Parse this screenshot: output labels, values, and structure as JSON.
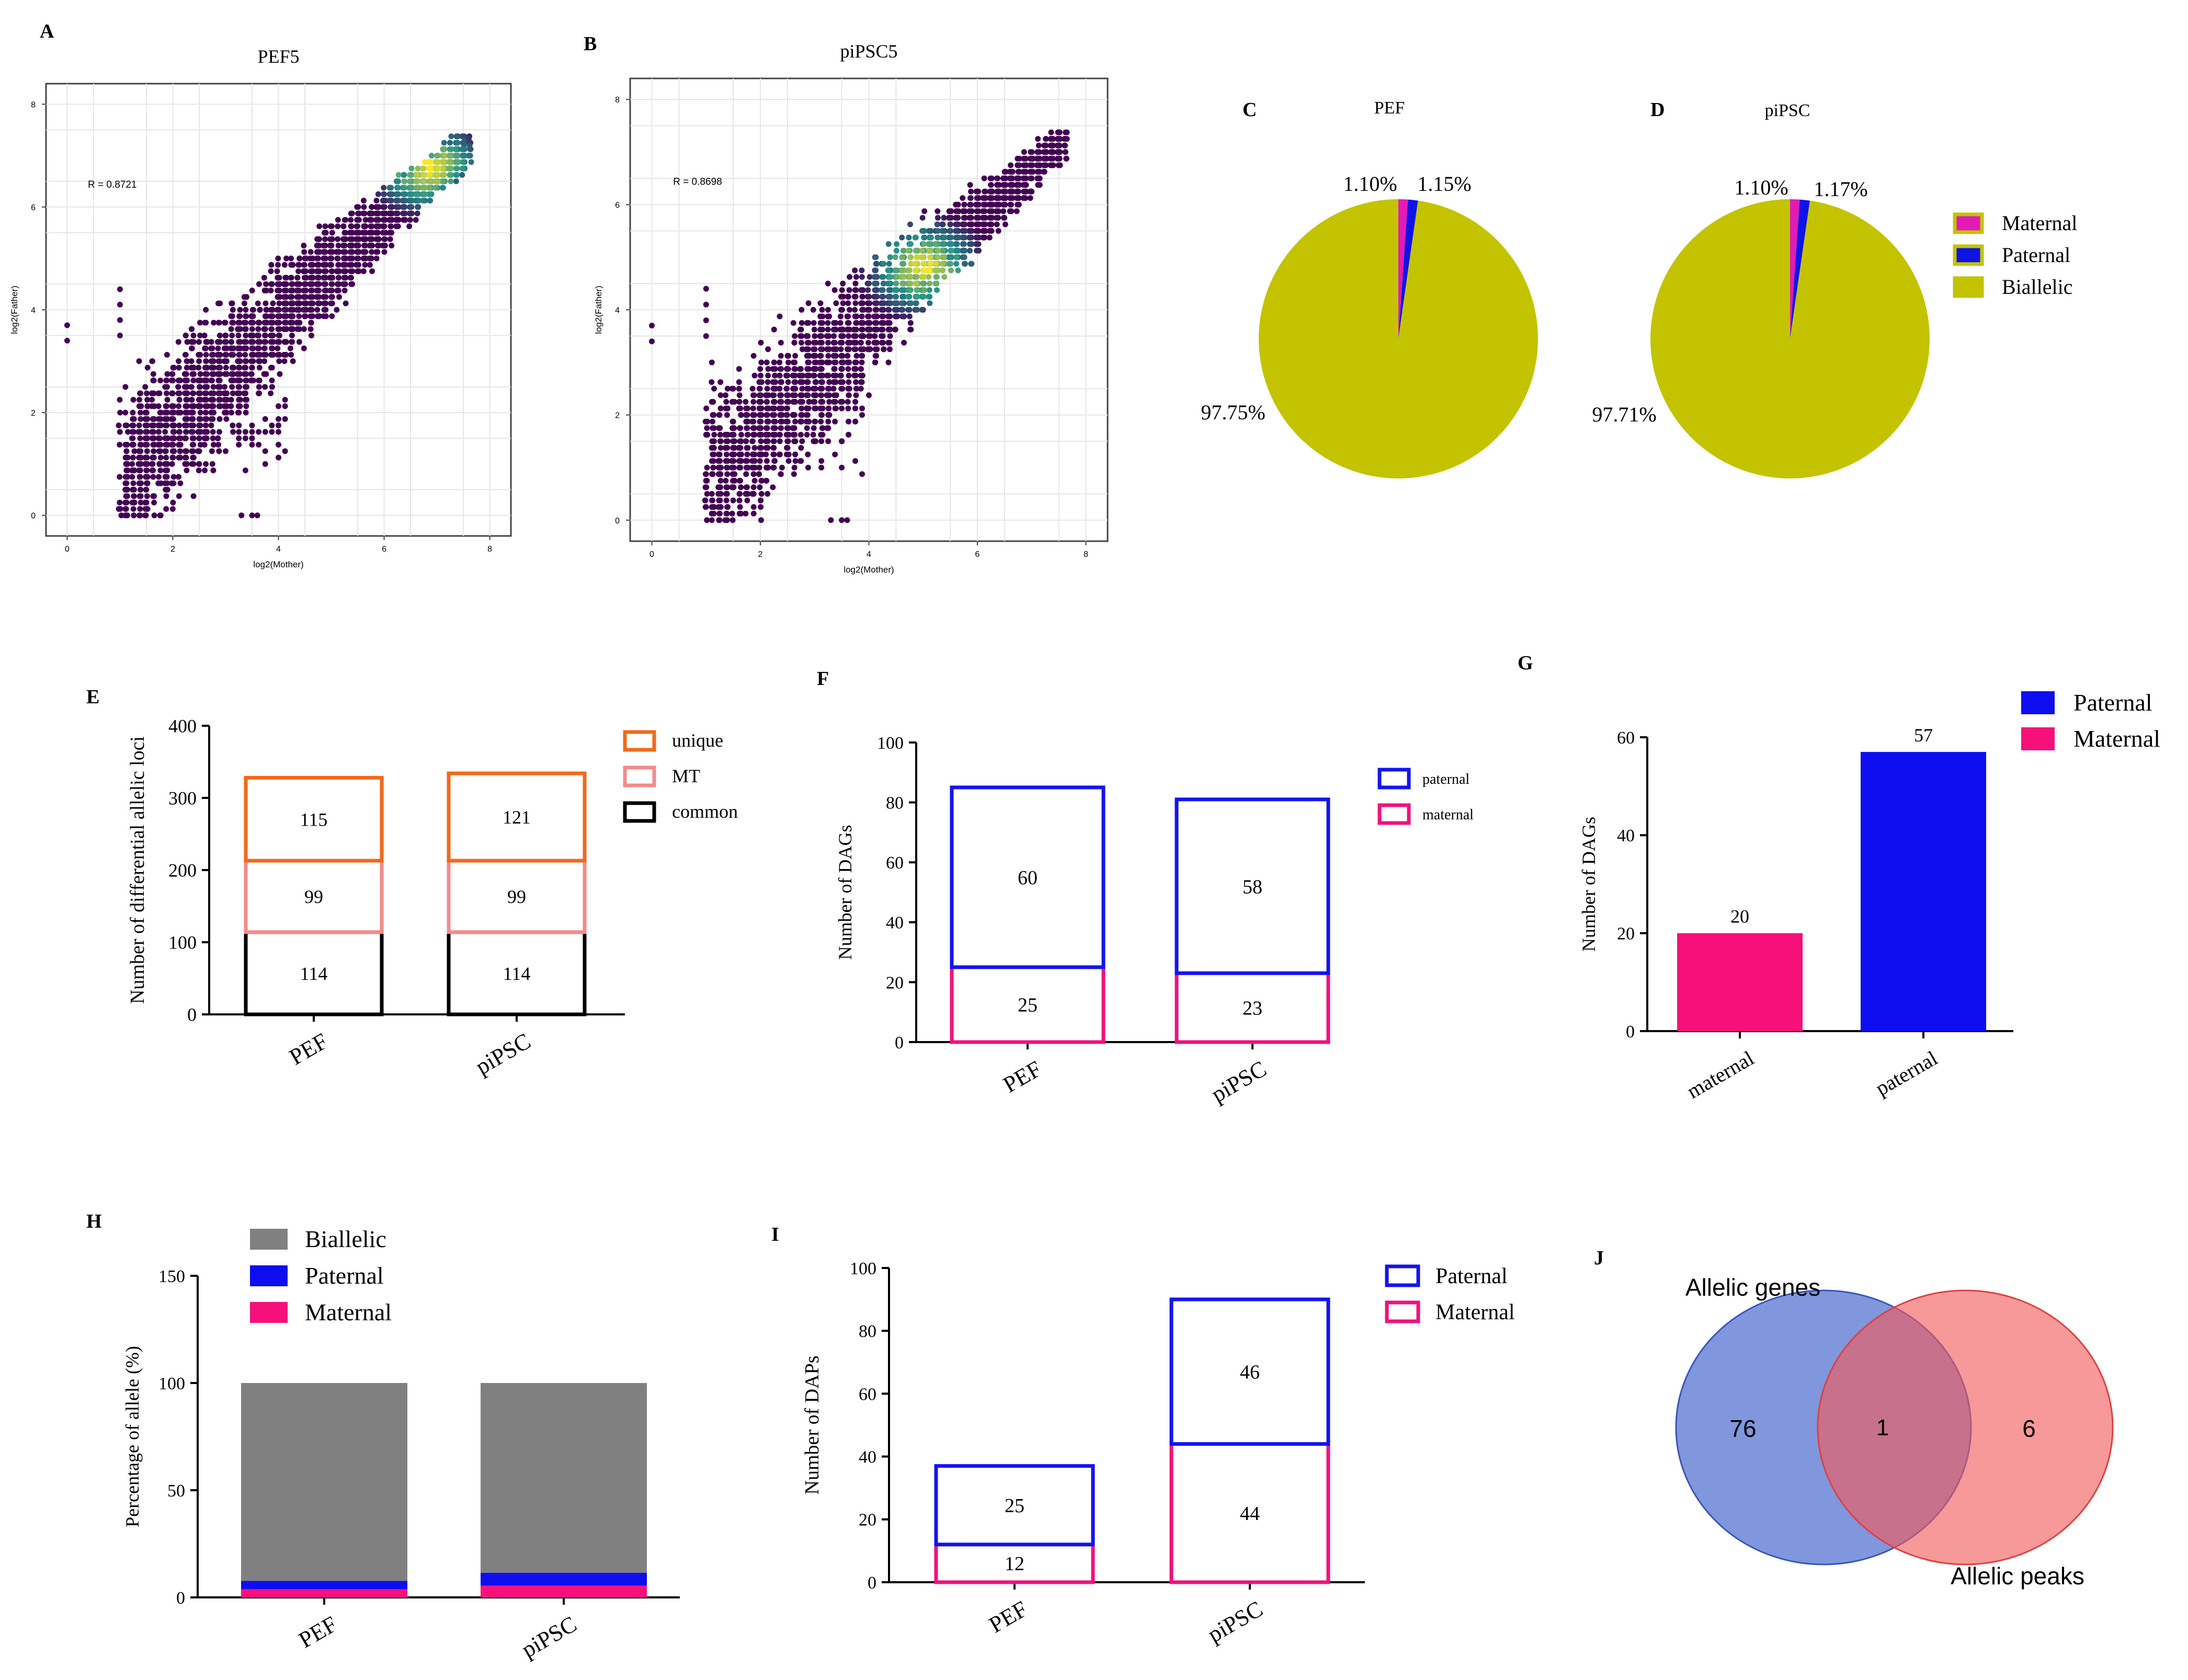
{
  "figure": {
    "panel_letters": [
      "A",
      "B",
      "C",
      "D",
      "E",
      "F",
      "G",
      "H",
      "I",
      "J"
    ]
  },
  "chart_data": [
    {
      "id": "A",
      "type": "scatter",
      "title": "PEF5",
      "xlabel": "log2(Mother)",
      "ylabel": "log2(Father)",
      "annotation": "R = 0.8721",
      "xlim": [
        -0.4,
        8.4
      ],
      "ylim": [
        -0.4,
        8.4
      ],
      "xticks": [
        0,
        2,
        4,
        6,
        8
      ],
      "yticks": [
        0,
        2,
        4,
        6,
        8
      ],
      "grid": true,
      "density_peak": [
        6.8,
        6.8
      ],
      "colors": {
        "low": "#440154",
        "mid": "#21918c",
        "high": "#fde725"
      }
    },
    {
      "id": "B",
      "type": "scatter",
      "title": "piPSC5",
      "xlabel": "log2(Mother)",
      "ylabel": "log2(Father)",
      "annotation": "R = 0.8698",
      "xlim": [
        -0.4,
        8.4
      ],
      "ylim": [
        -0.4,
        8.4
      ],
      "xticks": [
        0,
        2,
        4,
        6,
        8
      ],
      "yticks": [
        0,
        2,
        4,
        6,
        8
      ],
      "grid": true,
      "density_peak": [
        5.0,
        4.8
      ],
      "colors": {
        "low": "#440154",
        "mid": "#21918c",
        "high": "#fde725"
      }
    },
    {
      "id": "C",
      "type": "pie",
      "title": "PEF",
      "slices": [
        {
          "name": "Maternal",
          "value": 1.1,
          "label": "1.10%",
          "color": "#e31ab8"
        },
        {
          "name": "Paternal",
          "value": 1.15,
          "label": "1.15%",
          "color": "#0f14e6"
        },
        {
          "name": "Biallelic",
          "value": 97.75,
          "label": "97.75%",
          "color": "#c3c300"
        }
      ]
    },
    {
      "id": "D",
      "type": "pie",
      "title": "piPSC",
      "slices": [
        {
          "name": "Maternal",
          "value": 1.1,
          "label": "1.10%",
          "color": "#e31ab8"
        },
        {
          "name": "Paternal",
          "value": 1.17,
          "label": "1.17%",
          "color": "#0f14e6"
        },
        {
          "name": "Biallelic",
          "value": 97.71,
          "label": "97.71%",
          "color": "#c3c300"
        }
      ],
      "legend": [
        {
          "name": "Maternal",
          "color": "#e31ab8",
          "border": "#c3c300"
        },
        {
          "name": "Paternal",
          "color": "#0f14e6",
          "border": "#c3c300"
        },
        {
          "name": "Biallelic",
          "color": "#c3c300",
          "border": "#c3c300"
        }
      ]
    },
    {
      "id": "E",
      "type": "bar",
      "stacked": true,
      "outlined": true,
      "categories": [
        "PEF",
        "piPSC"
      ],
      "ylabel": "Number of differential allelic loci",
      "ylim": [
        0,
        400
      ],
      "yticks": [
        0,
        100,
        200,
        300,
        400
      ],
      "series": [
        {
          "name": "common",
          "values": [
            114,
            114
          ],
          "color": "#000000"
        },
        {
          "name": "MT",
          "values": [
            99,
            99
          ],
          "color": "#f58b8b"
        },
        {
          "name": "unique",
          "values": [
            115,
            121
          ],
          "color": "#f26a1b"
        }
      ],
      "legend": [
        "unique",
        "MT",
        "common"
      ]
    },
    {
      "id": "F",
      "type": "bar",
      "stacked": true,
      "outlined": true,
      "categories": [
        "PEF",
        "piPSC"
      ],
      "ylabel": "Number of DAGs",
      "ylim": [
        0,
        100
      ],
      "yticks": [
        0,
        20,
        40,
        60,
        80,
        100
      ],
      "series": [
        {
          "name": "maternal",
          "values": [
            25,
            23
          ],
          "color": "#f0127d"
        },
        {
          "name": "paternal",
          "values": [
            60,
            58
          ],
          "color": "#1414f0"
        }
      ],
      "legend": [
        "paternal",
        "maternal"
      ]
    },
    {
      "id": "G",
      "type": "bar",
      "categories": [
        "maternal",
        "paternal"
      ],
      "ylabel": "Number of DAGs",
      "ylim": [
        0,
        60
      ],
      "yticks": [
        0,
        20,
        40,
        60
      ],
      "values": [
        20,
        57
      ],
      "colors": [
        "#f5107a",
        "#0d0df0"
      ],
      "data_labels": [
        "20",
        "57"
      ],
      "legend": [
        {
          "name": "Paternal",
          "color": "#0d0df0"
        },
        {
          "name": "Maternal",
          "color": "#f5107a"
        }
      ]
    },
    {
      "id": "H",
      "type": "bar",
      "stacked": true,
      "categories": [
        "PEF",
        "piPSC"
      ],
      "ylabel": "Percentage of allele (%)",
      "ylim": [
        0,
        150
      ],
      "yticks": [
        0,
        50,
        100,
        150
      ],
      "series": [
        {
          "name": "Maternal",
          "values": [
            3.8,
            5.5
          ],
          "color": "#f5107a"
        },
        {
          "name": "Paternal",
          "values": [
            3.9,
            6.0
          ],
          "color": "#0d0df0"
        },
        {
          "name": "Biallelic",
          "values": [
            92.3,
            88.5
          ],
          "color": "#808080"
        }
      ],
      "legend": [
        "Biallelic",
        "Paternal",
        "Maternal"
      ]
    },
    {
      "id": "I",
      "type": "bar",
      "stacked": true,
      "outlined": true,
      "categories": [
        "PEF",
        "piPSC"
      ],
      "ylabel": "Number of DAPs",
      "ylim": [
        0,
        100
      ],
      "yticks": [
        0,
        20,
        40,
        60,
        80,
        100
      ],
      "series": [
        {
          "name": "Maternal",
          "values": [
            12,
            44
          ],
          "color": "#f0127d"
        },
        {
          "name": "Paternal",
          "values": [
            25,
            46
          ],
          "color": "#1414f0"
        }
      ],
      "legend": [
        "Paternal",
        "Maternal"
      ]
    },
    {
      "id": "J",
      "type": "venn",
      "sets": [
        {
          "name": "Allelic genes",
          "only": 76,
          "color": "#4f6fd0"
        },
        {
          "name": "Allelic peaks",
          "only": 6,
          "color": "#f25a5a"
        }
      ],
      "intersection": 1
    }
  ]
}
